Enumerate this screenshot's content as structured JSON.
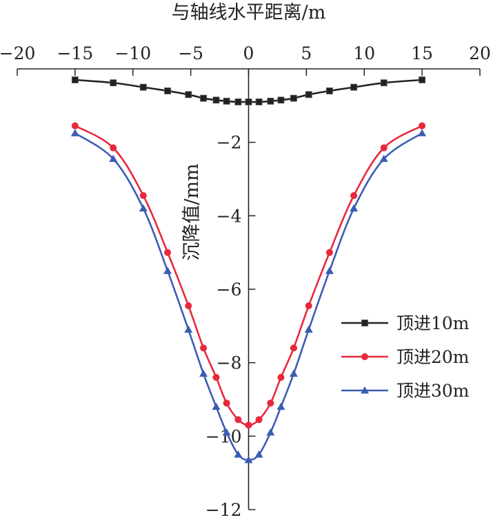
{
  "chart_data": {
    "type": "line",
    "xlabel": "与轴线水平距离/m",
    "ylabel": "沉降值/mm",
    "xlim": [
      -20,
      20
    ],
    "ylim": [
      -12,
      0
    ],
    "xticks": [
      -20,
      -15,
      -10,
      -5,
      0,
      5,
      10,
      15,
      20
    ],
    "yticks": [
      -2,
      -4,
      -6,
      -8,
      -10,
      -12
    ],
    "x_axis_position": "top",
    "y_axis_position": "center",
    "grid": false,
    "legend_position": "right",
    "x": [
      -15,
      -11.7,
      -9.1,
      -7,
      -5.2,
      -3.9,
      -2.8,
      -1.9,
      -0.9,
      0,
      0.9,
      1.9,
      2.8,
      3.9,
      5.2,
      7,
      9.1,
      11.7,
      15
    ],
    "series": [
      {
        "name": "顶进10m",
        "color": "#222222",
        "marker": "square",
        "values": [
          -0.3,
          -0.38,
          -0.5,
          -0.6,
          -0.7,
          -0.8,
          -0.85,
          -0.88,
          -0.9,
          -0.9,
          -0.9,
          -0.88,
          -0.85,
          -0.8,
          -0.7,
          -0.6,
          -0.5,
          -0.38,
          -0.3
        ]
      },
      {
        "name": "顶进20m",
        "color": "#e8283c",
        "marker": "circle",
        "values": [
          -1.55,
          -2.15,
          -3.45,
          -5.0,
          -6.45,
          -7.6,
          -8.4,
          -9.1,
          -9.55,
          -9.7,
          -9.55,
          -9.1,
          -8.4,
          -7.6,
          -6.45,
          -5.0,
          -3.45,
          -2.15,
          -1.55
        ]
      },
      {
        "name": "顶进30m",
        "color": "#3a5db4",
        "marker": "triangle",
        "values": [
          -1.75,
          -2.45,
          -3.8,
          -5.5,
          -7.1,
          -8.3,
          -9.2,
          -9.9,
          -10.5,
          -10.65,
          -10.5,
          -9.9,
          -9.2,
          -8.3,
          -7.1,
          -5.5,
          -3.8,
          -2.45,
          -1.75
        ]
      }
    ]
  }
}
